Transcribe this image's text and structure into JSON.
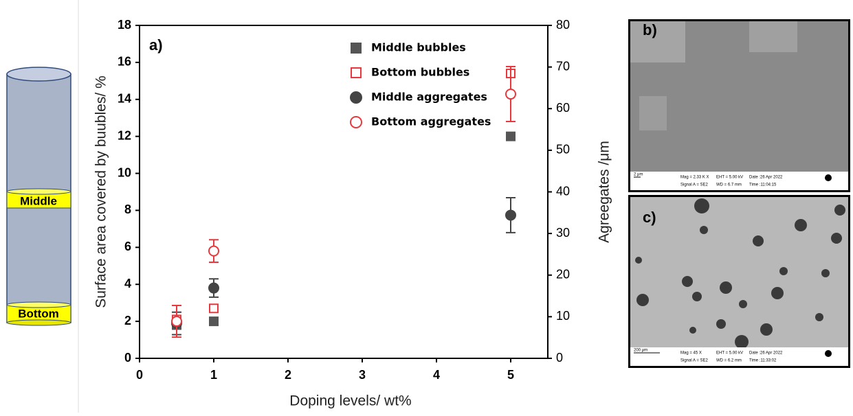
{
  "chart_data": {
    "type": "scatter",
    "panel_label": "a)",
    "x_label": "Doping levels/ wt%",
    "y_label": "Surface area covered by buubles/ %",
    "y2_label": "Agreegates /μm",
    "xlim": [
      0,
      5.5
    ],
    "xticks": [
      0,
      1,
      2,
      3,
      4,
      5
    ],
    "ylim": [
      0,
      18
    ],
    "yticks": [
      0,
      2,
      4,
      6,
      8,
      10,
      12,
      14,
      16,
      18
    ],
    "y2lim": [
      0,
      80
    ],
    "y2ticks": [
      0,
      10,
      20,
      30,
      40,
      50,
      60,
      70,
      80
    ],
    "series": [
      {
        "name": "Middle bubbles",
        "color": "#555555",
        "marker": "square",
        "filled": true,
        "x": [
          0.5,
          1,
          5
        ],
        "values": [
          1.8,
          2.0,
          12.0
        ]
      },
      {
        "name": "Bottom bubbles",
        "color": "#e8383d",
        "marker": "square",
        "filled": false,
        "x": [
          0.5,
          1,
          5
        ],
        "values": [
          2.1,
          2.7,
          15.4
        ]
      },
      {
        "name": "Middle aggregates",
        "color": "#444444",
        "marker": "circle",
        "filled": true,
        "axis": "y2",
        "x": [
          0.5,
          1,
          5
        ],
        "values": [
          8.4,
          16.9,
          34.4
        ],
        "errors": [
          2.7,
          2.2,
          4.2
        ]
      },
      {
        "name": "Bottom aggregates",
        "color": "#e8383d",
        "marker": "circle",
        "filled": false,
        "axis": "y2",
        "x": [
          0.5,
          1,
          5
        ],
        "values": [
          8.9,
          25.8,
          63.5
        ],
        "errors": [
          3.8,
          2.7,
          6.6
        ]
      }
    ]
  },
  "diagram": {
    "middle": "Middle",
    "bottom": "Bottom"
  },
  "panels": [
    {
      "label": "b)",
      "scale": "2 μm",
      "info": [
        "Mag =  2.33 K X",
        "EHT = 5.00 kV",
        "Date :26 Apr 2022",
        "Signal A = SE2",
        "WD = 6.7 mm",
        "Time :11:04:15"
      ]
    },
    {
      "label": "c)",
      "scale": "200 μm",
      "info": [
        "Mag =    45 X",
        "EHT = 5.00 kV",
        "Date :26 Apr 2022",
        "Signal A = SE2",
        "WD = 6.2 mm",
        "Time :11:33:02"
      ]
    }
  ]
}
